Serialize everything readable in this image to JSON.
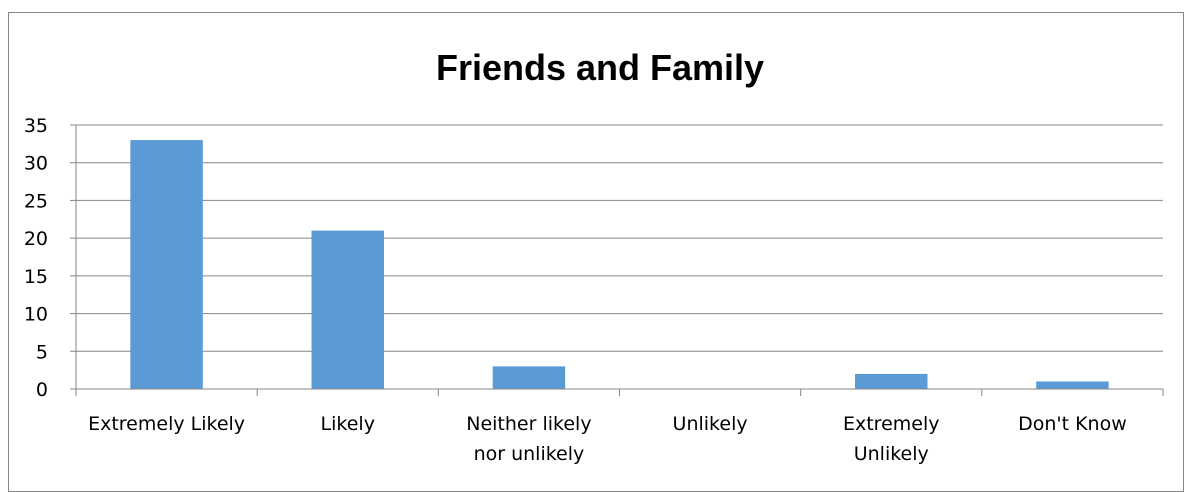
{
  "chart_data": {
    "type": "bar",
    "title": "Friends and Family",
    "categories": [
      [
        "Extremely Likely"
      ],
      [
        "Likely"
      ],
      [
        "Neither likely",
        "nor unlikely"
      ],
      [
        "Unlikely"
      ],
      [
        "Extremely",
        "Unlikely"
      ],
      [
        "Don't Know"
      ]
    ],
    "values": [
      33,
      21,
      3,
      0,
      2,
      1
    ],
    "ylim": [
      0,
      35
    ],
    "yticks": [
      0,
      5,
      10,
      15,
      20,
      25,
      30,
      35
    ],
    "grid": true,
    "legend": "none",
    "bar_color": "#5B9BD5",
    "grid_color": "#868686"
  }
}
